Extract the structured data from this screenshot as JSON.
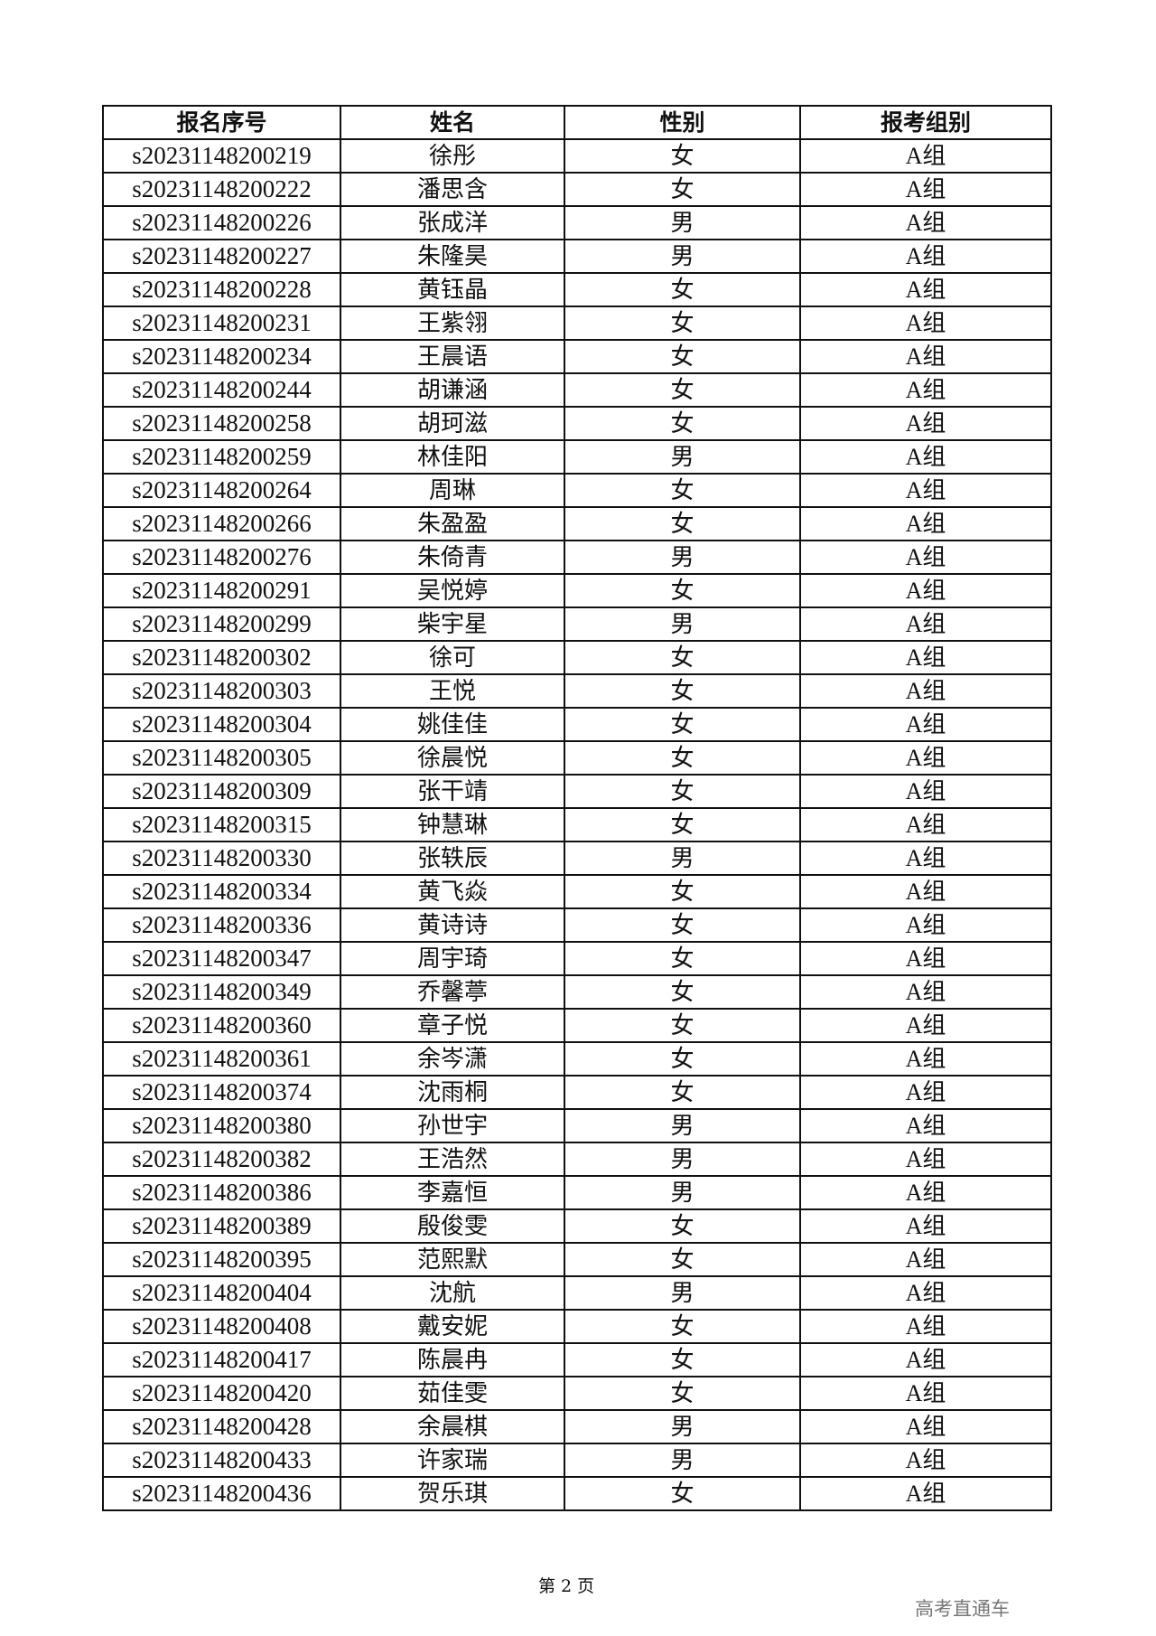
{
  "table": {
    "headers": [
      "报名序号",
      "姓名",
      "性别",
      "报考组别"
    ],
    "rows": [
      [
        "s20231148200219",
        "徐彤",
        "女",
        "A组"
      ],
      [
        "s20231148200222",
        "潘思含",
        "女",
        "A组"
      ],
      [
        "s20231148200226",
        "张成洋",
        "男",
        "A组"
      ],
      [
        "s20231148200227",
        "朱隆昊",
        "男",
        "A组"
      ],
      [
        "s20231148200228",
        "黄钰晶",
        "女",
        "A组"
      ],
      [
        "s20231148200231",
        "王紫翎",
        "女",
        "A组"
      ],
      [
        "s20231148200234",
        "王晨语",
        "女",
        "A组"
      ],
      [
        "s20231148200244",
        "胡谦涵",
        "女",
        "A组"
      ],
      [
        "s20231148200258",
        "胡珂滋",
        "女",
        "A组"
      ],
      [
        "s20231148200259",
        "林佳阳",
        "男",
        "A组"
      ],
      [
        "s20231148200264",
        "周琳",
        "女",
        "A组"
      ],
      [
        "s20231148200266",
        "朱盈盈",
        "女",
        "A组"
      ],
      [
        "s20231148200276",
        "朱倚青",
        "男",
        "A组"
      ],
      [
        "s20231148200291",
        "吴悦婷",
        "女",
        "A组"
      ],
      [
        "s20231148200299",
        "柴宇星",
        "男",
        "A组"
      ],
      [
        "s20231148200302",
        "徐可",
        "女",
        "A组"
      ],
      [
        "s20231148200303",
        "王悦",
        "女",
        "A组"
      ],
      [
        "s20231148200304",
        "姚佳佳",
        "女",
        "A组"
      ],
      [
        "s20231148200305",
        "徐晨悦",
        "女",
        "A组"
      ],
      [
        "s20231148200309",
        "张干靖",
        "女",
        "A组"
      ],
      [
        "s20231148200315",
        "钟慧琳",
        "女",
        "A组"
      ],
      [
        "s20231148200330",
        "张轶辰",
        "男",
        "A组"
      ],
      [
        "s20231148200334",
        "黄飞焱",
        "女",
        "A组"
      ],
      [
        "s20231148200336",
        "黄诗诗",
        "女",
        "A组"
      ],
      [
        "s20231148200347",
        "周宇琦",
        "女",
        "A组"
      ],
      [
        "s20231148200349",
        "乔馨葶",
        "女",
        "A组"
      ],
      [
        "s20231148200360",
        "章子悦",
        "女",
        "A组"
      ],
      [
        "s20231148200361",
        "余岑潇",
        "女",
        "A组"
      ],
      [
        "s20231148200374",
        "沈雨桐",
        "女",
        "A组"
      ],
      [
        "s20231148200380",
        "孙世宇",
        "男",
        "A组"
      ],
      [
        "s20231148200382",
        "王浩然",
        "男",
        "A组"
      ],
      [
        "s20231148200386",
        "李嘉恒",
        "男",
        "A组"
      ],
      [
        "s20231148200389",
        "殷俊雯",
        "女",
        "A组"
      ],
      [
        "s20231148200395",
        "范熙默",
        "女",
        "A组"
      ],
      [
        "s20231148200404",
        "沈航",
        "男",
        "A组"
      ],
      [
        "s20231148200408",
        "戴安妮",
        "女",
        "A组"
      ],
      [
        "s20231148200417",
        "陈晨冉",
        "女",
        "A组"
      ],
      [
        "s20231148200420",
        "茹佳雯",
        "女",
        "A组"
      ],
      [
        "s20231148200428",
        "余晨棋",
        "男",
        "A组"
      ],
      [
        "s20231148200433",
        "许家瑞",
        "男",
        "A组"
      ],
      [
        "s20231148200436",
        "贺乐琪",
        "女",
        "A组"
      ]
    ]
  },
  "footer": {
    "page_label": "第 2 页"
  },
  "brand": {
    "text": "高考直通车",
    "color": "#777777"
  }
}
